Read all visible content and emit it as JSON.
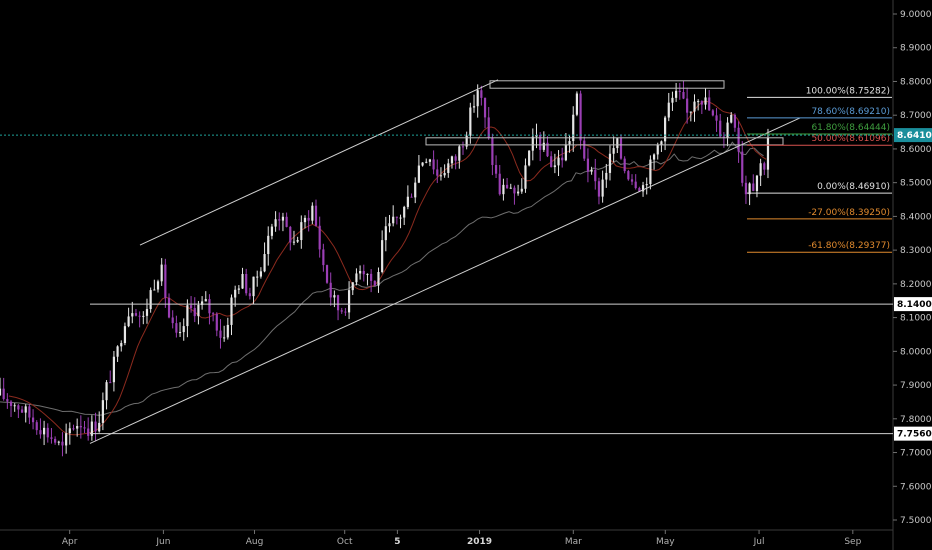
{
  "chart_data": {
    "type": "candlestick",
    "title": "",
    "ylim": [
      7.46,
      9.04
    ],
    "y_ticks": [
      "9.00000",
      "8.90000",
      "8.80000",
      "8.70000",
      "8.60000",
      "8.50000",
      "8.40000",
      "8.30000",
      "8.20000",
      "8.10000",
      "8.00000",
      "7.90000",
      "7.80000",
      "7.70000",
      "7.60000",
      "7.50000"
    ],
    "y_tick_values": [
      9.0,
      8.9,
      8.8,
      8.7,
      8.6,
      8.5,
      8.4,
      8.3,
      8.2,
      8.1,
      8.0,
      7.9,
      7.8,
      7.7,
      7.6,
      7.5
    ],
    "x_tick_labels": [
      "Apr",
      "Jun",
      "Aug",
      "Oct",
      "5",
      "2019",
      "Mar",
      "May",
      "Jul",
      "Sep"
    ],
    "x_tick_bold": [
      false,
      false,
      false,
      false,
      true,
      true,
      false,
      false,
      false,
      false
    ],
    "x_tick_positions": [
      0.078,
      0.183,
      0.285,
      0.386,
      0.445,
      0.537,
      0.642,
      0.745,
      0.85,
      0.955
    ],
    "current_price": "8.64103",
    "current_price_value": 8.64103,
    "horizontal_levels": [
      {
        "label": "8.14000",
        "value": 8.14
      },
      {
        "label": "7.75600",
        "value": 7.756
      }
    ],
    "fib_levels": [
      {
        "label": "100.00%(8.75282)",
        "value": 8.75282,
        "color": "#e0e0e0"
      },
      {
        "label": "78.60%(8.69210)",
        "value": 8.6921,
        "color": "#5b9bd5"
      },
      {
        "label": "61.80%(8.64444)",
        "value": 8.64444,
        "color": "#3f9f3f"
      },
      {
        "label": "50.00%(8.61096)",
        "value": 8.61096,
        "color": "#d9534f"
      },
      {
        "label": "0.00%(8.46910)",
        "value": 8.4691,
        "color": "#e0e0e0"
      },
      {
        "label": "-27.00%(8.39250)",
        "value": 8.3925,
        "color": "#e08a2e"
      },
      {
        "label": "-61.80%(8.29377)",
        "value": 8.29377,
        "color": "#e08a2e"
      }
    ],
    "price_path": [
      [
        0.0,
        7.87
      ],
      [
        0.02,
        7.84
      ],
      [
        0.04,
        7.79
      ],
      [
        0.06,
        7.74
      ],
      [
        0.07,
        7.71
      ],
      [
        0.08,
        7.78
      ],
      [
        0.09,
        7.79
      ],
      [
        0.1,
        7.77
      ],
      [
        0.11,
        7.79
      ],
      [
        0.12,
        7.9
      ],
      [
        0.13,
        7.98
      ],
      [
        0.14,
        8.1
      ],
      [
        0.15,
        8.14
      ],
      [
        0.16,
        8.09
      ],
      [
        0.17,
        8.19
      ],
      [
        0.18,
        8.25
      ],
      [
        0.19,
        8.09
      ],
      [
        0.2,
        8.02
      ],
      [
        0.21,
        8.12
      ],
      [
        0.22,
        8.13
      ],
      [
        0.23,
        8.14
      ],
      [
        0.24,
        8.1
      ],
      [
        0.25,
        8.03
      ],
      [
        0.26,
        8.16
      ],
      [
        0.27,
        8.22
      ],
      [
        0.28,
        8.17
      ],
      [
        0.29,
        8.24
      ],
      [
        0.3,
        8.33
      ],
      [
        0.31,
        8.42
      ],
      [
        0.32,
        8.36
      ],
      [
        0.33,
        8.32
      ],
      [
        0.34,
        8.38
      ],
      [
        0.35,
        8.43
      ],
      [
        0.36,
        8.28
      ],
      [
        0.37,
        8.17
      ],
      [
        0.38,
        8.12
      ],
      [
        0.39,
        8.15
      ],
      [
        0.4,
        8.26
      ],
      [
        0.41,
        8.24
      ],
      [
        0.42,
        8.19
      ],
      [
        0.43,
        8.34
      ],
      [
        0.44,
        8.38
      ],
      [
        0.45,
        8.41
      ],
      [
        0.46,
        8.47
      ],
      [
        0.47,
        8.56
      ],
      [
        0.48,
        8.59
      ],
      [
        0.49,
        8.52
      ],
      [
        0.5,
        8.55
      ],
      [
        0.51,
        8.57
      ],
      [
        0.52,
        8.64
      ],
      [
        0.53,
        8.73
      ],
      [
        0.535,
        8.78
      ],
      [
        0.54,
        8.73
      ],
      [
        0.55,
        8.58
      ],
      [
        0.56,
        8.47
      ],
      [
        0.57,
        8.5
      ],
      [
        0.58,
        8.45
      ],
      [
        0.59,
        8.56
      ],
      [
        0.6,
        8.64
      ],
      [
        0.61,
        8.59
      ],
      [
        0.62,
        8.55
      ],
      [
        0.63,
        8.58
      ],
      [
        0.64,
        8.65
      ],
      [
        0.645,
        8.78
      ],
      [
        0.65,
        8.62
      ],
      [
        0.66,
        8.53
      ],
      [
        0.67,
        8.47
      ],
      [
        0.68,
        8.55
      ],
      [
        0.69,
        8.62
      ],
      [
        0.7,
        8.54
      ],
      [
        0.71,
        8.51
      ],
      [
        0.72,
        8.49
      ],
      [
        0.73,
        8.56
      ],
      [
        0.74,
        8.64
      ],
      [
        0.75,
        8.74
      ],
      [
        0.76,
        8.76
      ],
      [
        0.77,
        8.7
      ],
      [
        0.78,
        8.77
      ],
      [
        0.79,
        8.74
      ],
      [
        0.8,
        8.68
      ],
      [
        0.81,
        8.64
      ],
      [
        0.82,
        8.72
      ],
      [
        0.825,
        8.66
      ],
      [
        0.83,
        8.53
      ],
      [
        0.835,
        8.47
      ],
      [
        0.84,
        8.52
      ],
      [
        0.845,
        8.49
      ],
      [
        0.85,
        8.56
      ],
      [
        0.855,
        8.54
      ],
      [
        0.86,
        8.64
      ]
    ]
  }
}
